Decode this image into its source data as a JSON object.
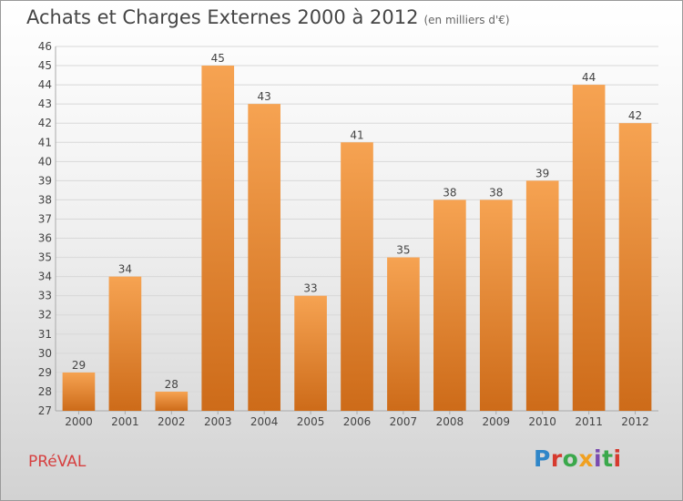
{
  "title": "Achats et Charges Externes 2000 à 2012",
  "unit_note": "(en milliers d'€)",
  "commune": "PRéVAL",
  "logo": {
    "text": "Proxiti",
    "letter_colors": [
      "#2f86c8",
      "#d63a2e",
      "#3aa84b",
      "#f0a020",
      "#7a4bb0",
      "#3aa84b",
      "#d63a2e"
    ]
  },
  "colors": {
    "bar_top": "#f6a352",
    "bar_bottom": "#cd6b19",
    "grid": "#d8d8d8",
    "axis_text": "#444444"
  },
  "chart_data": {
    "type": "bar",
    "title": "Achats et Charges Externes 2000 à 2012",
    "categories": [
      "2000",
      "2001",
      "2002",
      "2003",
      "2004",
      "2005",
      "2006",
      "2007",
      "2008",
      "2009",
      "2010",
      "2011",
      "2012"
    ],
    "values": [
      29,
      34,
      28,
      45,
      43,
      33,
      41,
      35,
      38,
      38,
      39,
      44,
      42
    ],
    "ylim": [
      27,
      46
    ],
    "yticks": [
      27,
      28,
      29,
      30,
      31,
      32,
      33,
      34,
      35,
      36,
      37,
      38,
      39,
      40,
      41,
      42,
      43,
      44,
      45,
      46
    ],
    "grid": true,
    "xlabel": "",
    "ylabel": ""
  }
}
